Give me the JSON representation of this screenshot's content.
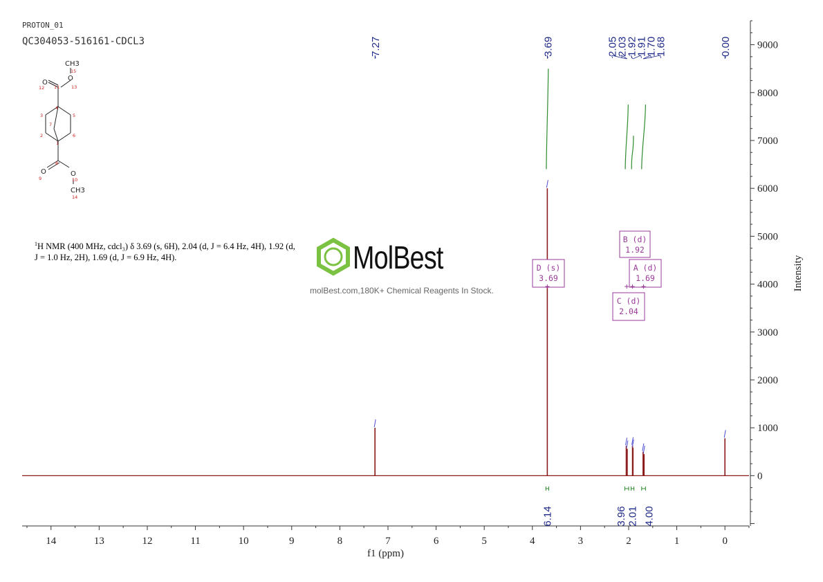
{
  "header": {
    "title": "PROTON_01",
    "sample_id": "QC304053-516161-CDCL3"
  },
  "nmr_description": {
    "sup": "1",
    "text": "H NMR (400 MHz, cdcl₃) δ 3.69 (s, 6H), 2.04 (d, J = 6.4 Hz, 4H), 1.92 (d, J = 1.0 Hz, 2H), 1.69 (d, J = 6.9 Hz, 4H)."
  },
  "watermark": {
    "brand": "MolBest",
    "tagline": "molBest.com,180K+ Chemical Reagents In Stock."
  },
  "structure": {
    "atom_labels": [
      "15",
      "13",
      "12",
      "11",
      "4",
      "3",
      "5",
      "7",
      "2",
      "1",
      "6",
      "8",
      "9",
      "10",
      "14"
    ],
    "groups": [
      "CH3",
      "O",
      "O",
      "O",
      "O",
      "CH3"
    ]
  },
  "chart_data": {
    "type": "line",
    "xlabel": "f1 (ppm)",
    "ylabel": "Intensity",
    "xlim": [
      14.6,
      -0.5
    ],
    "ylim": [
      -1050,
      9500
    ],
    "x_ticks": [
      14,
      13,
      12,
      11,
      10,
      9,
      8,
      7,
      6,
      5,
      4,
      3,
      2,
      1,
      0
    ],
    "y_ticks": [
      0,
      1000,
      2000,
      3000,
      4000,
      5000,
      6000,
      7000,
      8000,
      9000
    ],
    "peaks": [
      {
        "ppm": 7.27,
        "height": 1000
      },
      {
        "ppm": 3.69,
        "height": 6000
      },
      {
        "ppm": 2.05,
        "height": 620
      },
      {
        "ppm": 2.03,
        "height": 560
      },
      {
        "ppm": 1.92,
        "height": 630
      },
      {
        "ppm": 1.91,
        "height": 580
      },
      {
        "ppm": 1.7,
        "height": 500
      },
      {
        "ppm": 1.68,
        "height": 450
      },
      {
        "ppm": 0.0,
        "height": 780
      }
    ],
    "peak_labels": [
      "7.27",
      "3.69",
      "2.05",
      "2.03",
      "1.92",
      "1.91",
      "1.70",
      "1.68",
      "0.00"
    ],
    "integrals": [
      {
        "value": "6.14",
        "center": 3.69,
        "from": 3.72,
        "to": 3.66
      },
      {
        "value": "3.96",
        "center": 2.04,
        "from": 2.08,
        "to": 2.0
      },
      {
        "value": "2.01",
        "center": 1.92,
        "from": 1.95,
        "to": 1.89
      },
      {
        "value": "4.00",
        "center": 1.69,
        "from": 1.73,
        "to": 1.65
      }
    ],
    "integral_curves": [
      {
        "center": 3.69,
        "from": 3.71,
        "to": 3.67,
        "low": 6400,
        "high": 8500
      },
      {
        "center": 2.04,
        "from": 2.07,
        "to": 2.01,
        "low": 6400,
        "high": 7750
      },
      {
        "center": 1.92,
        "from": 1.94,
        "to": 1.9,
        "low": 6400,
        "high": 7100
      },
      {
        "center": 1.69,
        "from": 1.73,
        "to": 1.65,
        "low": 6400,
        "high": 7750
      }
    ],
    "multiplets": [
      {
        "name": "D (s)",
        "shift": "3.69",
        "ppm": 3.69
      },
      {
        "name": "B (d)",
        "shift": "1.92",
        "ppm": 1.92
      },
      {
        "name": "A (d)",
        "shift": "1.69",
        "ppm": 1.69
      },
      {
        "name": "C (d)",
        "shift": "2.04",
        "ppm": 2.04
      }
    ],
    "colors": {
      "spectrum": "#8b1a1a",
      "axis": "#333333",
      "peak_label": "#1f2a8a",
      "integral": "#2e8b2e",
      "integral_text": "#1f2a8a",
      "multiplet": "#9a3a9a"
    }
  }
}
